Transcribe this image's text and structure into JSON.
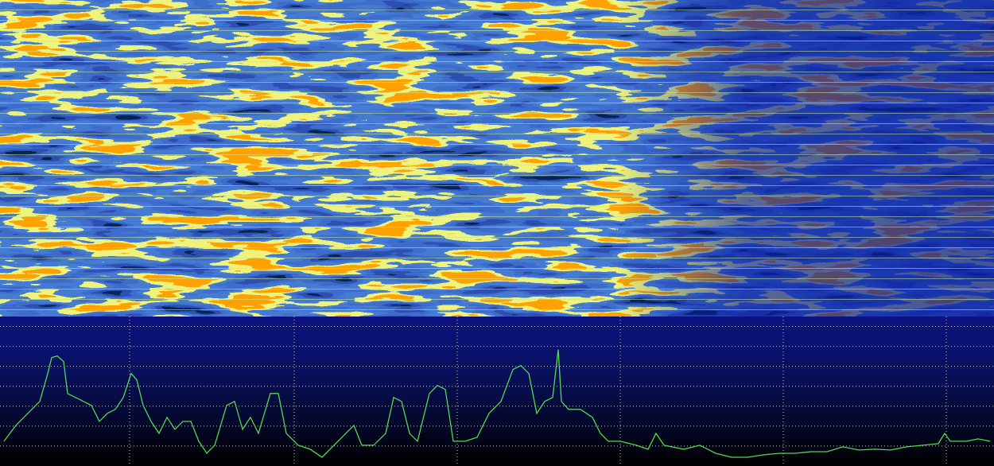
{
  "chart_data": {
    "type": "line",
    "x": [
      5,
      20,
      35,
      50,
      60,
      65,
      72,
      80,
      85,
      95,
      105,
      115,
      125,
      135,
      145,
      155,
      165,
      172,
      180,
      190,
      200,
      210,
      220,
      230,
      240,
      250,
      260,
      270,
      285,
      295,
      305,
      315,
      325,
      340,
      350,
      360,
      375,
      390,
      405,
      420,
      435,
      445,
      455,
      470,
      485,
      495,
      505,
      515,
      525,
      540,
      550,
      560,
      570,
      585,
      600,
      615,
      630,
      645,
      655,
      665,
      675,
      685,
      695,
      702,
      706,
      715,
      730,
      745,
      755,
      765,
      780,
      800,
      815,
      825,
      835,
      860,
      880,
      900,
      920,
      940,
      960,
      980,
      1000,
      1020,
      1040,
      1060,
      1080,
      1100,
      1120,
      1140,
      1160,
      1180,
      1188,
      1195,
      1215,
      1230,
      1245
    ],
    "series": [
      {
        "color": "#52d852",
        "values": [
          1.24,
          2.04,
          2.64,
          3.24,
          4.64,
          5.44,
          5.52,
          5.24,
          3.64,
          3.44,
          3.24,
          3.04,
          2.24,
          2.64,
          2.84,
          3.44,
          4.64,
          4.32,
          3.04,
          2.24,
          1.64,
          2.44,
          1.84,
          2.24,
          2.24,
          1.24,
          0.64,
          1.04,
          3.04,
          3.24,
          1.84,
          2.44,
          1.64,
          3.64,
          3.64,
          1.64,
          1.04,
          0.84,
          0.44,
          1.04,
          1.64,
          2.04,
          1.04,
          1.04,
          1.64,
          3.44,
          3.24,
          1.64,
          1.24,
          3.64,
          4.04,
          3.84,
          1.24,
          1.24,
          1.44,
          2.64,
          3.24,
          4.84,
          5.04,
          4.64,
          2.64,
          3.24,
          3.44,
          5.84,
          3.24,
          2.84,
          2.84,
          2.44,
          1.64,
          1.24,
          1.24,
          1.04,
          0.84,
          1.64,
          1.04,
          0.84,
          1.04,
          0.64,
          0.44,
          0.44,
          0.56,
          0.64,
          0.64,
          0.72,
          0.72,
          0.96,
          0.8,
          0.84,
          0.8,
          0.96,
          1.04,
          1.12,
          1.64,
          1.24,
          1.24,
          1.36,
          1.24
        ]
      }
    ],
    "xlim": [
      0,
      1250
    ],
    "xticks": [
      163,
      370,
      575,
      780,
      985,
      1190
    ],
    "ylim": [
      0,
      7.5
    ],
    "yticks": [
      1,
      2,
      3,
      4,
      5,
      6,
      7
    ],
    "grid": true
  }
}
